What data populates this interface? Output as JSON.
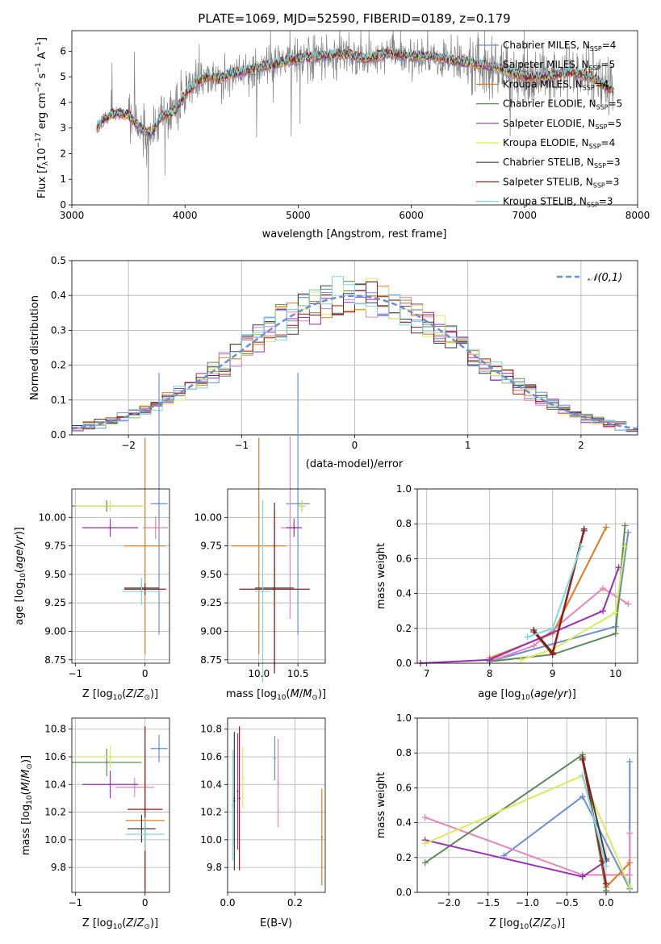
{
  "chart_data": [
    {
      "id": "spectrum",
      "type": "line",
      "title": "PLATE=1069, MJD=52590, FIBERID=0189, z=0.179",
      "xlabel": "wavelength [Angstrom, rest frame]",
      "ylabel": "Flux [f_λ10^-17 erg cm^-2 s^-1 A^-1]",
      "xlim": [
        3000,
        8000
      ],
      "ylim": [
        0,
        6.8
      ],
      "xticks": [
        3000,
        4000,
        5000,
        6000,
        7000,
        8000
      ],
      "yticks": [
        0,
        1,
        2,
        3,
        4,
        5,
        6
      ],
      "legend_position": "top-right",
      "observed_color": "#808080",
      "series": [
        {
          "name": "Chabrier MILES, N_SSP=4",
          "color": "#6a8fd8"
        },
        {
          "name": "Salpeter MILES, N_SSP=5",
          "color": "#e884b8"
        },
        {
          "name": "Kroupa MILES, N_SSP=4",
          "color": "#e07b22"
        },
        {
          "name": "Chabrier ELODIE, N_SSP=5",
          "color": "#5e8a5a"
        },
        {
          "name": "Salpeter ELODIE, N_SSP=5",
          "color": "#9a2fb8"
        },
        {
          "name": "Kroupa ELODIE, N_SSP=4",
          "color": "#d9ec55"
        },
        {
          "name": "Chabrier STELIB, N_SSP=3",
          "color": "#3a3a3a"
        },
        {
          "name": "Salpeter STELIB, N_SSP=3",
          "color": "#a01818"
        },
        {
          "name": "Kroupa STELIB, N_SSP=3",
          "color": "#7ad8e0"
        }
      ],
      "continuum": {
        "x": [
          3220,
          3300,
          3400,
          3500,
          3600,
          3700,
          3800,
          3900,
          4000,
          4100,
          4200,
          4300,
          4400,
          4500,
          4600,
          4800,
          5000,
          5200,
          5400,
          5600,
          5800,
          6000,
          6200,
          6400,
          6600,
          6800,
          7000,
          7200,
          7400,
          7600,
          7800
        ],
        "y": [
          3.0,
          3.4,
          3.6,
          3.5,
          3.0,
          2.8,
          3.5,
          3.6,
          4.3,
          4.8,
          5.0,
          4.9,
          5.1,
          5.2,
          5.3,
          5.5,
          5.7,
          5.8,
          5.9,
          5.7,
          5.9,
          5.8,
          5.8,
          5.6,
          5.5,
          5.3,
          5.0,
          5.0,
          5.2,
          5.0,
          4.4
        ]
      }
    },
    {
      "id": "residuals",
      "type": "bar",
      "xlabel": "(data-model)/error",
      "ylabel": "Normed distribution",
      "xlim": [
        -2.5,
        2.5
      ],
      "ylim": [
        0,
        0.5
      ],
      "xticks": [
        -2,
        -1,
        0,
        1,
        2
      ],
      "yticks": [
        0.0,
        0.1,
        0.2,
        0.3,
        0.4,
        0.5
      ],
      "bin_width": 0.1,
      "legend": "𝒩(0,1)",
      "legend_position": "top-right",
      "normal_color": "#6a8fd8"
    },
    {
      "id": "age-vs-Z",
      "type": "scatter",
      "xlabel": "Z [log10(Z/Z⊙)]",
      "ylabel": "age  [log10(age/yr)]",
      "xlim": [
        -1.05,
        0.35
      ],
      "ylim": [
        8.72,
        10.25
      ],
      "xticks": [
        -1,
        0
      ],
      "yticks": [
        8.75,
        9.0,
        9.25,
        9.5,
        9.75,
        10.0
      ],
      "points": [
        {
          "x": 0.2,
          "y": 10.12,
          "xerr": 0.12,
          "yerr": 1.15,
          "color": "#6a8fd8"
        },
        {
          "x": 0.15,
          "y": 9.91,
          "xerr": 0.18,
          "yerr": 0.1,
          "color": "#e884b8"
        },
        {
          "x": 0.0,
          "y": 9.75,
          "xerr": 0.3,
          "yerr": 0.95,
          "color": "#e07b22"
        },
        {
          "x": -0.55,
          "y": 10.1,
          "xerr": 0.5,
          "yerr": 0.05,
          "color": "#5e8a5a"
        },
        {
          "x": -0.5,
          "y": 9.91,
          "xerr": 0.4,
          "yerr": 0.08,
          "color": "#9a2fb8"
        },
        {
          "x": -0.5,
          "y": 10.1,
          "xerr": 0.5,
          "yerr": 0.05,
          "color": "#d9ec55"
        },
        {
          "x": -0.05,
          "y": 9.38,
          "xerr": 0.25,
          "yerr": 0.05,
          "color": "#3a3a3a"
        },
        {
          "x": 0.0,
          "y": 9.37,
          "xerr": 0.3,
          "yerr": 0.05,
          "color": "#a01818"
        },
        {
          "x": -0.05,
          "y": 9.35,
          "xerr": 0.28,
          "yerr": 0.12,
          "color": "#7ad8e0"
        }
      ]
    },
    {
      "id": "age-vs-mass",
      "type": "scatter",
      "xlabel": "mass [log10(M/M⊙)]",
      "ylabel": "",
      "xlim": [
        9.6,
        10.85
      ],
      "ylim": [
        8.72,
        10.25
      ],
      "xticks": [
        10.0,
        10.5
      ],
      "yticks": [
        8.75,
        9.0,
        9.25,
        9.5,
        9.75,
        10.0
      ],
      "points": [
        {
          "x": 10.5,
          "y": 10.12,
          "xerr": 0.15,
          "yerr": 1.15,
          "color": "#6a8fd8"
        },
        {
          "x": 10.4,
          "y": 9.91,
          "xerr": 0.12,
          "yerr": 0.8,
          "color": "#e884b8"
        },
        {
          "x": 10.0,
          "y": 9.75,
          "xerr": 0.35,
          "yerr": 0.95,
          "color": "#e07b22"
        },
        {
          "x": 10.55,
          "y": 10.1,
          "xerr": 0.05,
          "yerr": 0.05,
          "color": "#5e8a5a"
        },
        {
          "x": 10.45,
          "y": 9.91,
          "xerr": 0.1,
          "yerr": 0.08,
          "color": "#9a2fb8"
        },
        {
          "x": 10.55,
          "y": 10.1,
          "xerr": 0.05,
          "yerr": 0.05,
          "color": "#d9ec55"
        },
        {
          "x": 10.2,
          "y": 9.38,
          "xerr": 0.25,
          "yerr": 0.75,
          "color": "#3a3a3a"
        },
        {
          "x": 10.2,
          "y": 9.37,
          "xerr": 0.45,
          "yerr": 0.7,
          "color": "#a01818"
        },
        {
          "x": 10.05,
          "y": 9.35,
          "xerr": 0.1,
          "yerr": 0.8,
          "color": "#7ad8e0"
        }
      ]
    },
    {
      "id": "massweight-vs-age",
      "type": "line",
      "xlabel": "age  [log10(age/yr)]",
      "ylabel": "mass weight",
      "xlim": [
        6.85,
        10.35
      ],
      "ylim": [
        0,
        1
      ],
      "xticks": [
        7,
        8,
        9,
        10
      ],
      "yticks": [
        0.0,
        0.2,
        0.4,
        0.6,
        0.8,
        1.0
      ],
      "series": [
        {
          "color": "#6a8fd8",
          "x": [
            8.0,
            10.0,
            10.2
          ],
          "y": [
            0.01,
            0.21,
            0.75
          ]
        },
        {
          "color": "#e884b8",
          "x": [
            8.0,
            8.7,
            9.8,
            10.2
          ],
          "y": [
            0.01,
            0.1,
            0.43,
            0.34
          ]
        },
        {
          "color": "#e07b22",
          "x": [
            8.0,
            9.0,
            9.85
          ],
          "y": [
            0.03,
            0.17,
            0.78
          ]
        },
        {
          "color": "#5e8a5a",
          "x": [
            8.0,
            9.0,
            10.0,
            10.15
          ],
          "y": [
            0.01,
            0.05,
            0.17,
            0.79
          ]
        },
        {
          "color": "#9a2fb8",
          "x": [
            6.9,
            8.0,
            9.8,
            10.05
          ],
          "y": [
            0.0,
            0.02,
            0.3,
            0.55
          ]
        },
        {
          "color": "#d9ec55",
          "x": [
            8.5,
            9.0,
            10.0,
            10.15
          ],
          "y": [
            0.02,
            0.08,
            0.29,
            0.67
          ]
        },
        {
          "color": "#3a3a3a",
          "x": [
            8.7,
            9.0,
            9.5
          ],
          "y": [
            0.19,
            0.06,
            0.77
          ]
        },
        {
          "color": "#a01818",
          "x": [
            8.7,
            9.0,
            9.5
          ],
          "y": [
            0.18,
            0.05,
            0.76
          ]
        },
        {
          "color": "#7ad8e0",
          "x": [
            8.6,
            9.0,
            9.45
          ],
          "y": [
            0.15,
            0.2,
            0.67
          ]
        }
      ]
    },
    {
      "id": "mass-vs-Z",
      "type": "scatter",
      "xlabel": "Z [log10(Z/Z⊙)]",
      "ylabel": "mass [log10(M/M⊙)]",
      "xlim": [
        -1.05,
        0.35
      ],
      "ylim": [
        9.62,
        10.88
      ],
      "xticks": [
        -1,
        0
      ],
      "yticks": [
        9.8,
        10.0,
        10.2,
        10.4,
        10.6,
        10.8
      ],
      "points": [
        {
          "x": 0.2,
          "y": 10.66,
          "xerr": 0.12,
          "yerr": 0.1,
          "color": "#6a8fd8"
        },
        {
          "x": -0.15,
          "y": 10.38,
          "xerr": 0.28,
          "yerr": 0.07,
          "color": "#e884b8"
        },
        {
          "x": 0.0,
          "y": 10.14,
          "xerr": 0.28,
          "yerr": 0.48,
          "color": "#e07b22"
        },
        {
          "x": -0.55,
          "y": 10.56,
          "xerr": 0.5,
          "yerr": 0.1,
          "color": "#5e8a5a"
        },
        {
          "x": -0.5,
          "y": 10.4,
          "xerr": 0.4,
          "yerr": 0.1,
          "color": "#9a2fb8"
        },
        {
          "x": -0.5,
          "y": 10.6,
          "xerr": 0.5,
          "yerr": 0.08,
          "color": "#d9ec55"
        },
        {
          "x": -0.05,
          "y": 10.08,
          "xerr": 0.2,
          "yerr": 0.1,
          "color": "#3a3a3a"
        },
        {
          "x": 0.0,
          "y": 10.22,
          "xerr": 0.25,
          "yerr": 0.6,
          "color": "#a01818"
        },
        {
          "x": 0.0,
          "y": 10.04,
          "xerr": 0.28,
          "yerr": 0.12,
          "color": "#7ad8e0"
        }
      ]
    },
    {
      "id": "mass-vs-EBV",
      "type": "scatter",
      "xlabel": "E(B-V)",
      "ylabel": "",
      "xlim": [
        0.0,
        0.29
      ],
      "ylim": [
        9.62,
        10.88
      ],
      "xticks": [
        0.0,
        0.2
      ],
      "yticks": [
        9.8,
        10.0,
        10.2,
        10.4,
        10.6,
        10.8
      ],
      "points": [
        {
          "x": 0.14,
          "y": 10.59,
          "yerr": 0.16,
          "color": "#6a8fd8"
        },
        {
          "x": 0.15,
          "y": 10.41,
          "yerr": 0.32,
          "color": "#e884b8"
        },
        {
          "x": 0.28,
          "y": 10.02,
          "yerr": 0.35,
          "color": "#e07b22"
        },
        {
          "x": 0.02,
          "y": 10.3,
          "yerr": 0.35,
          "color": "#5e8a5a"
        },
        {
          "x": 0.03,
          "y": 10.35,
          "yerr": 0.42,
          "color": "#9a2fb8"
        },
        {
          "x": 0.045,
          "y": 10.45,
          "yerr": 0.22,
          "color": "#d9ec55"
        },
        {
          "x": 0.02,
          "y": 10.28,
          "yerr": 0.5,
          "color": "#3a3a3a"
        },
        {
          "x": 0.035,
          "y": 10.3,
          "yerr": 0.52,
          "color": "#a01818"
        },
        {
          "x": 0.015,
          "y": 10.25,
          "yerr": 0.4,
          "color": "#7ad8e0"
        }
      ]
    },
    {
      "id": "massweight-vs-Z",
      "type": "line",
      "xlabel": "Z [log10(Z/Z⊙)]",
      "ylabel": "mass weight",
      "xlim": [
        -2.4,
        0.4
      ],
      "ylim": [
        0,
        1
      ],
      "xticks": [
        -2.0,
        -1.5,
        -1.0,
        -0.5,
        0.0
      ],
      "yticks": [
        0.0,
        0.2,
        0.4,
        0.6,
        0.8,
        1.0
      ],
      "series": [
        {
          "color": "#6a8fd8",
          "x": [
            -1.3,
            -0.3,
            0.3,
            0.3
          ],
          "y": [
            0.21,
            0.55,
            0.02,
            0.75
          ]
        },
        {
          "color": "#e884b8",
          "x": [
            -2.3,
            -0.3,
            0.3,
            0.3
          ],
          "y": [
            0.43,
            0.1,
            0.1,
            0.34
          ]
        },
        {
          "color": "#e07b22",
          "x": [
            -0.3,
            0.0,
            0.3
          ],
          "y": [
            0.78,
            0.03,
            0.17
          ]
        },
        {
          "color": "#5e8a5a",
          "x": [
            -2.3,
            -0.3,
            0.0
          ],
          "y": [
            0.17,
            0.79,
            0.01
          ]
        },
        {
          "color": "#9a2fb8",
          "x": [
            -2.3,
            -0.3,
            0.0
          ],
          "y": [
            0.3,
            0.09,
            0.18
          ]
        },
        {
          "color": "#d9ec55",
          "x": [
            -2.3,
            -0.3,
            0.3
          ],
          "y": [
            0.28,
            0.67,
            0.03
          ]
        },
        {
          "color": "#3a3a3a",
          "x": [
            -0.3,
            0.0
          ],
          "y": [
            0.77,
            0.19
          ]
        },
        {
          "color": "#a01818",
          "x": [
            -0.3,
            -0.05,
            0.0
          ],
          "y": [
            0.76,
            0.18,
            0.05
          ]
        },
        {
          "color": "#7ad8e0",
          "x": [
            -0.3,
            0.0
          ],
          "y": [
            0.67,
            0.15
          ]
        }
      ]
    }
  ]
}
